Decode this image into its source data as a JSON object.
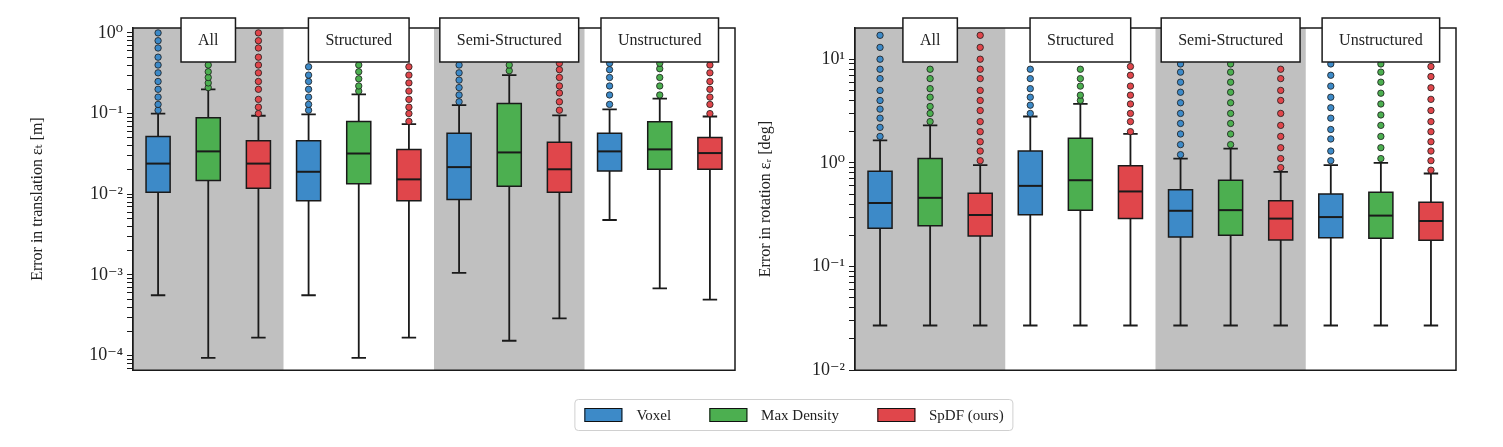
{
  "chart_data": [
    {
      "type": "box",
      "categories": [
        "All",
        "Structured",
        "Semi-Structured",
        "Unstructured"
      ],
      "ylabel": "Error in translation εₜ [m]",
      "log": true,
      "legend": "bottom",
      "ylim": [
        6.6e-05,
        1.15
      ],
      "yticks": [
        {
          "value": 7e-05,
          "label": null
        },
        {
          "value": 8e-05,
          "label": null
        },
        {
          "value": 9e-05,
          "label": null
        },
        {
          "value": 0.0001,
          "label": "10⁻⁴"
        },
        {
          "value": 0.0002,
          "label": null
        },
        {
          "value": 0.0003,
          "label": null
        },
        {
          "value": 0.0004,
          "label": null
        },
        {
          "value": 0.0005,
          "label": null
        },
        {
          "value": 0.0006,
          "label": null
        },
        {
          "value": 0.0007,
          "label": null
        },
        {
          "value": 0.0008,
          "label": null
        },
        {
          "value": 0.0009,
          "label": null
        },
        {
          "value": 0.001,
          "label": "10⁻³"
        },
        {
          "value": 0.002,
          "label": null
        },
        {
          "value": 0.003,
          "label": null
        },
        {
          "value": 0.004,
          "label": null
        },
        {
          "value": 0.005,
          "label": null
        },
        {
          "value": 0.006,
          "label": null
        },
        {
          "value": 0.007,
          "label": null
        },
        {
          "value": 0.008,
          "label": null
        },
        {
          "value": 0.009,
          "label": null
        },
        {
          "value": 0.01,
          "label": "10⁻²"
        },
        {
          "value": 0.02,
          "label": null
        },
        {
          "value": 0.03,
          "label": null
        },
        {
          "value": 0.04,
          "label": null
        },
        {
          "value": 0.05,
          "label": null
        },
        {
          "value": 0.06,
          "label": null
        },
        {
          "value": 0.07,
          "label": null
        },
        {
          "value": 0.08,
          "label": null
        },
        {
          "value": 0.09,
          "label": null
        },
        {
          "value": 0.1,
          "label": "10⁻¹"
        },
        {
          "value": 0.2,
          "label": null
        },
        {
          "value": 0.3,
          "label": null
        },
        {
          "value": 0.4,
          "label": null
        },
        {
          "value": 0.5,
          "label": null
        },
        {
          "value": 0.6,
          "label": null
        },
        {
          "value": 0.7,
          "label": null
        },
        {
          "value": 0.8,
          "label": null
        },
        {
          "value": 0.9,
          "label": null
        },
        {
          "value": 1,
          "label": "10⁰"
        }
      ],
      "bands": [
        {
          "axis": "x",
          "from": "All",
          "to": "All",
          "color": "#c0c0c0"
        },
        {
          "axis": "x",
          "from": "Semi-Structured",
          "to": "Semi-Structured",
          "color": "#c0c0c0"
        }
      ],
      "series": [
        {
          "name": "Voxel",
          "color": "#3d8ac8",
          "boxes": [
            {
              "low": 0.00056,
              "q1": 0.0106,
              "median": 0.024,
              "q3": 0.052,
              "high": 0.1,
              "outliers": [
                0.11,
                0.13,
                0.16,
                0.2,
                0.25,
                0.32,
                0.4,
                0.5,
                0.65,
                0.8,
                1
              ]
            },
            {
              "low": 0.00056,
              "q1": 0.0083,
              "median": 0.019,
              "q3": 0.046,
              "high": 0.098,
              "outliers": [
                0.11,
                0.13,
                0.16,
                0.2,
                0.25,
                0.3,
                0.38
              ]
            },
            {
              "low": 0.00106,
              "q1": 0.0086,
              "median": 0.0217,
              "q3": 0.057,
              "high": 0.127,
              "outliers": [
                0.14,
                0.17,
                0.21,
                0.26,
                0.32,
                0.4
              ]
            },
            {
              "low": 0.0048,
              "q1": 0.0194,
              "median": 0.034,
              "q3": 0.057,
              "high": 0.113,
              "outliers": [
                0.13,
                0.17,
                0.22,
                0.28,
                0.35,
                0.42
              ]
            }
          ]
        },
        {
          "name": "Max Density",
          "color": "#4caf50",
          "boxes": [
            {
              "low": 9.4e-05,
              "q1": 0.0148,
              "median": 0.034,
              "q3": 0.089,
              "high": 0.2,
              "outliers": [
                0.21,
                0.24,
                0.28,
                0.33,
                0.4
              ]
            },
            {
              "low": 9.4e-05,
              "q1": 0.0135,
              "median": 0.032,
              "q3": 0.08,
              "high": 0.173,
              "outliers": [
                0.19,
                0.22,
                0.27,
                0.33,
                0.4
              ]
            },
            {
              "low": 0.000153,
              "q1": 0.0126,
              "median": 0.033,
              "q3": 0.133,
              "high": 0.3,
              "outliers": [
                0.34,
                0.4
              ]
            },
            {
              "low": 0.00068,
              "q1": 0.0204,
              "median": 0.036,
              "q3": 0.079,
              "high": 0.153,
              "outliers": [
                0.17,
                0.22,
                0.28,
                0.36,
                0.42
              ]
            }
          ]
        },
        {
          "name": "SpDF (ours)",
          "color": "#e0464b",
          "boxes": [
            {
              "low": 0.000167,
              "q1": 0.0119,
              "median": 0.024,
              "q3": 0.046,
              "high": 0.094,
              "outliers": [
                0.1,
                0.12,
                0.15,
                0.2,
                0.25,
                0.32,
                0.4,
                0.5,
                0.65,
                0.8,
                1
              ]
            },
            {
              "low": 0.000167,
              "q1": 0.0083,
              "median": 0.0153,
              "q3": 0.036,
              "high": 0.074,
              "outliers": [
                0.08,
                0.1,
                0.12,
                0.15,
                0.19,
                0.24,
                0.3,
                0.38
              ]
            },
            {
              "low": 0.00029,
              "q1": 0.0106,
              "median": 0.0204,
              "q3": 0.044,
              "high": 0.095,
              "outliers": [
                0.11,
                0.14,
                0.18,
                0.22,
                0.28,
                0.35,
                0.42
              ]
            },
            {
              "low": 0.000495,
              "q1": 0.0204,
              "median": 0.0324,
              "q3": 0.0506,
              "high": 0.092,
              "outliers": [
                0.1,
                0.13,
                0.16,
                0.2,
                0.25,
                0.32,
                0.4
              ]
            }
          ]
        }
      ]
    },
    {
      "type": "box",
      "categories": [
        "All",
        "Structured",
        "Semi-Structured",
        "Unstructured"
      ],
      "ylabel": "Error in rotation εᵣ [deg]",
      "log": true,
      "ylim": [
        0.01,
        20
      ],
      "yticks": [
        {
          "value": 0.01,
          "label": "10⁻²"
        },
        {
          "value": 0.02,
          "label": null
        },
        {
          "value": 0.03,
          "label": null
        },
        {
          "value": 0.04,
          "label": null
        },
        {
          "value": 0.05,
          "label": null
        },
        {
          "value": 0.06,
          "label": null
        },
        {
          "value": 0.07,
          "label": null
        },
        {
          "value": 0.08,
          "label": null
        },
        {
          "value": 0.09,
          "label": null
        },
        {
          "value": 0.1,
          "label": "10⁻¹"
        },
        {
          "value": 0.2,
          "label": null
        },
        {
          "value": 0.3,
          "label": null
        },
        {
          "value": 0.4,
          "label": null
        },
        {
          "value": 0.5,
          "label": null
        },
        {
          "value": 0.6,
          "label": null
        },
        {
          "value": 0.7,
          "label": null
        },
        {
          "value": 0.8,
          "label": null
        },
        {
          "value": 0.9,
          "label": null
        },
        {
          "value": 1,
          "label": "10⁰"
        },
        {
          "value": 2,
          "label": null
        },
        {
          "value": 3,
          "label": null
        },
        {
          "value": 4,
          "label": null
        },
        {
          "value": 5,
          "label": null
        },
        {
          "value": 6,
          "label": null
        },
        {
          "value": 7,
          "label": null
        },
        {
          "value": 8,
          "label": null
        },
        {
          "value": 9,
          "label": null
        },
        {
          "value": 10,
          "label": "10¹"
        }
      ],
      "bands": [
        {
          "axis": "x",
          "from": "All",
          "to": "All",
          "color": "#c0c0c0"
        },
        {
          "axis": "x",
          "from": "Semi-Structured",
          "to": "Semi-Structured",
          "color": "#c0c0c0"
        }
      ],
      "series": [
        {
          "name": "Voxel",
          "color": "#3d8ac8",
          "boxes": [
            {
              "low": 0.027,
              "q1": 0.234,
              "median": 0.41,
              "q3": 0.83,
              "high": 1.65,
              "outliers": [
                1.8,
                2.2,
                2.7,
                3.3,
                4,
                5,
                6.5,
                8,
                10,
                13,
                17
              ]
            },
            {
              "low": 0.027,
              "q1": 0.316,
              "median": 0.6,
              "q3": 1.3,
              "high": 2.8,
              "outliers": [
                3,
                3.6,
                4.3,
                5.2,
                6.5,
                8
              ]
            },
            {
              "low": 0.027,
              "q1": 0.193,
              "median": 0.345,
              "q3": 0.55,
              "high": 1.1,
              "outliers": [
                1.2,
                1.5,
                1.9,
                2.4,
                3,
                3.8,
                4.8,
                6,
                7.5,
                9
              ]
            },
            {
              "low": 0.027,
              "q1": 0.19,
              "median": 0.3,
              "q3": 0.5,
              "high": 0.95,
              "outliers": [
                1.05,
                1.3,
                1.7,
                2.1,
                2.7,
                3.4,
                4.3,
                5.5,
                7,
                9
              ]
            }
          ]
        },
        {
          "name": "Max Density",
          "color": "#4caf50",
          "boxes": [
            {
              "low": 0.027,
              "q1": 0.248,
              "median": 0.46,
              "q3": 1.1,
              "high": 2.3,
              "outliers": [
                2.5,
                3,
                3.5,
                4.3,
                5.2,
                6.5,
                8
              ]
            },
            {
              "low": 0.027,
              "q1": 0.35,
              "median": 0.68,
              "q3": 1.73,
              "high": 3.7,
              "outliers": [
                4,
                4.5,
                5.5,
                6.5,
                8
              ]
            },
            {
              "low": 0.027,
              "q1": 0.2,
              "median": 0.35,
              "q3": 0.68,
              "high": 1.37,
              "outliers": [
                1.5,
                1.9,
                2.4,
                3,
                3.8,
                4.8,
                6,
                7.5,
                9
              ]
            },
            {
              "low": 0.027,
              "q1": 0.187,
              "median": 0.31,
              "q3": 0.52,
              "high": 1,
              "outliers": [
                1.1,
                1.4,
                1.8,
                2.3,
                2.9,
                3.7,
                4.7,
                6,
                7.5,
                9
              ]
            }
          ]
        },
        {
          "name": "SpDF (ours)",
          "color": "#e0464b",
          "boxes": [
            {
              "low": 0.027,
              "q1": 0.197,
              "median": 0.314,
              "q3": 0.51,
              "high": 0.95,
              "outliers": [
                1.05,
                1.3,
                1.6,
                2,
                2.5,
                3.2,
                4,
                5,
                6.5,
                8,
                10,
                13,
                17
              ]
            },
            {
              "low": 0.027,
              "q1": 0.29,
              "median": 0.53,
              "q3": 0.94,
              "high": 1.9,
              "outliers": [
                2,
                2.5,
                3,
                3.7,
                4.5,
                5.5,
                7,
                8.5
              ]
            },
            {
              "low": 0.027,
              "q1": 0.18,
              "median": 0.29,
              "q3": 0.43,
              "high": 0.82,
              "outliers": [
                0.9,
                1.1,
                1.4,
                1.8,
                2.3,
                3,
                4,
                5,
                6.5,
                8
              ]
            },
            {
              "low": 0.027,
              "q1": 0.179,
              "median": 0.275,
              "q3": 0.416,
              "high": 0.79,
              "outliers": [
                0.85,
                1.05,
                1.3,
                1.6,
                2,
                2.5,
                3.2,
                4.1,
                5.3,
                6.8,
                8.5
              ]
            }
          ]
        }
      ]
    }
  ]
}
